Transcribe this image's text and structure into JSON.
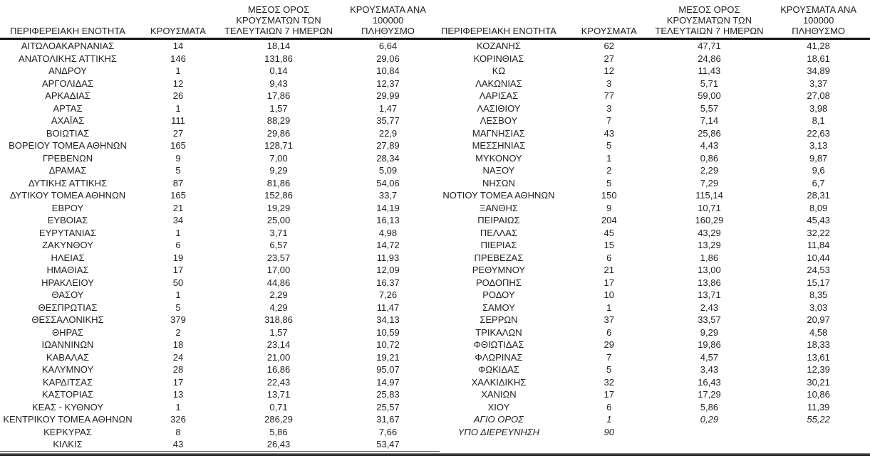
{
  "colors": {
    "background": "#ffffff",
    "text": "#1f1f1f",
    "rule": "#111111"
  },
  "header": {
    "col_region": "ΠΕΡΙΦΕΡΕΙΑΚΗ ΕΝΟΤΗΤΑ",
    "col_cases": "ΚΡΟΥΣΜΑΤΑ",
    "col_avg7": "ΜΕΣΟΣ ΟΡΟΣ\nΚΡΟΥΣΜΑΤΩΝ ΤΩΝ\nΤΕΛΕΥΤΑΙΩΝ 7 ΗΜΕΡΩΝ",
    "col_per100k": "ΚΡΟΥΣΜΑΤΑ ΑΝΑ 100000\nΠΛΗΘΥΣΜΟ"
  },
  "tables": {
    "left": {
      "rows": [
        {
          "region": "ΑΙΤΩΛΟΑΚΑΡΝΑΝΙΑΣ",
          "cases": "14",
          "avg7": "18,14",
          "per100k": "6,64",
          "italic": false
        },
        {
          "region": "ΑΝΑΤΟΛΙΚΗΣ ΑΤΤΙΚΗΣ",
          "cases": "146",
          "avg7": "131,86",
          "per100k": "29,06",
          "italic": false
        },
        {
          "region": "ΑΝΔΡΟΥ",
          "cases": "1",
          "avg7": "0,14",
          "per100k": "10,84",
          "italic": false
        },
        {
          "region": "ΑΡΓΟΛΙΔΑΣ",
          "cases": "12",
          "avg7": "9,43",
          "per100k": "12,37",
          "italic": false
        },
        {
          "region": "ΑΡΚΑΔΙΑΣ",
          "cases": "26",
          "avg7": "17,86",
          "per100k": "29,99",
          "italic": false
        },
        {
          "region": "ΑΡΤΑΣ",
          "cases": "1",
          "avg7": "1,57",
          "per100k": "1,47",
          "italic": false
        },
        {
          "region": "ΑΧΑΪΑΣ",
          "cases": "111",
          "avg7": "88,29",
          "per100k": "35,77",
          "italic": false
        },
        {
          "region": "ΒΟΙΩΤΙΑΣ",
          "cases": "27",
          "avg7": "29,86",
          "per100k": "22,9",
          "italic": false
        },
        {
          "region": "ΒΟΡΕΙΟΥ ΤΟΜΕΑ ΑΘΗΝΩΝ",
          "cases": "165",
          "avg7": "128,71",
          "per100k": "27,89",
          "italic": false
        },
        {
          "region": "ΓΡΕΒΕΝΩΝ",
          "cases": "9",
          "avg7": "7,00",
          "per100k": "28,34",
          "italic": false
        },
        {
          "region": "ΔΡΑΜΑΣ",
          "cases": "5",
          "avg7": "9,29",
          "per100k": "5,09",
          "italic": false
        },
        {
          "region": "ΔΥΤΙΚΗΣ ΑΤΤΙΚΗΣ",
          "cases": "87",
          "avg7": "81,86",
          "per100k": "54,06",
          "italic": false
        },
        {
          "region": "ΔΥΤΙΚΟΥ ΤΟΜΕΑ ΑΘΗΝΩΝ",
          "cases": "165",
          "avg7": "152,86",
          "per100k": "33,7",
          "italic": false
        },
        {
          "region": "ΕΒΡΟΥ",
          "cases": "21",
          "avg7": "19,29",
          "per100k": "14,19",
          "italic": false
        },
        {
          "region": "ΕΥΒΟΙΑΣ",
          "cases": "34",
          "avg7": "25,00",
          "per100k": "16,13",
          "italic": false
        },
        {
          "region": "ΕΥΡΥΤΑΝΙΑΣ",
          "cases": "1",
          "avg7": "3,71",
          "per100k": "4,98",
          "italic": false
        },
        {
          "region": "ΖΑΚΥΝΘΟΥ",
          "cases": "6",
          "avg7": "6,57",
          "per100k": "14,72",
          "italic": false
        },
        {
          "region": "ΗΛΕΙΑΣ",
          "cases": "19",
          "avg7": "23,57",
          "per100k": "11,93",
          "italic": false
        },
        {
          "region": "ΗΜΑΘΙΑΣ",
          "cases": "17",
          "avg7": "17,00",
          "per100k": "12,09",
          "italic": false
        },
        {
          "region": "ΗΡΑΚΛΕΙΟΥ",
          "cases": "50",
          "avg7": "44,86",
          "per100k": "16,37",
          "italic": false
        },
        {
          "region": "ΘΑΣΟΥ",
          "cases": "1",
          "avg7": "2,29",
          "per100k": "7,26",
          "italic": false
        },
        {
          "region": "ΘΕΣΠΡΩΤΙΑΣ",
          "cases": "5",
          "avg7": "4,29",
          "per100k": "11,47",
          "italic": false
        },
        {
          "region": "ΘΕΣΣΑΛΟΝΙΚΗΣ",
          "cases": "379",
          "avg7": "318,86",
          "per100k": "34,13",
          "italic": false
        },
        {
          "region": "ΘΗΡΑΣ",
          "cases": "2",
          "avg7": "1,57",
          "per100k": "10,59",
          "italic": false
        },
        {
          "region": "ΙΩΑΝΝΙΝΩΝ",
          "cases": "18",
          "avg7": "23,14",
          "per100k": "10,72",
          "italic": false
        },
        {
          "region": "ΚΑΒΑΛΑΣ",
          "cases": "24",
          "avg7": "21,00",
          "per100k": "19,21",
          "italic": false
        },
        {
          "region": "ΚΑΛΥΜΝΟΥ",
          "cases": "28",
          "avg7": "16,86",
          "per100k": "95,07",
          "italic": false
        },
        {
          "region": "ΚΑΡΔΙΤΣΑΣ",
          "cases": "17",
          "avg7": "22,43",
          "per100k": "14,97",
          "italic": false
        },
        {
          "region": "ΚΑΣΤΟΡΙΑΣ",
          "cases": "13",
          "avg7": "13,71",
          "per100k": "25,83",
          "italic": false
        },
        {
          "region": "ΚΕΑΣ - ΚΥΘΝΟΥ",
          "cases": "1",
          "avg7": "0,71",
          "per100k": "25,57",
          "italic": false
        },
        {
          "region": "ΚΕΝΤΡΙΚΟΥ ΤΟΜΕΑ ΑΘΗΝΩΝ",
          "cases": "326",
          "avg7": "286,29",
          "per100k": "31,67",
          "italic": false
        },
        {
          "region": "ΚΕΡΚΥΡΑΣ",
          "cases": "8",
          "avg7": "5,86",
          "per100k": "7,66",
          "italic": false
        },
        {
          "region": "ΚΙΛΚΙΣ",
          "cases": "43",
          "avg7": "26,43",
          "per100k": "53,47",
          "italic": false
        }
      ]
    },
    "right": {
      "rows": [
        {
          "region": "ΚΟΖΑΝΗΣ",
          "cases": "62",
          "avg7": "47,71",
          "per100k": "41,28",
          "italic": false
        },
        {
          "region": "ΚΟΡΙΝΘΙΑΣ",
          "cases": "27",
          "avg7": "24,86",
          "per100k": "18,61",
          "italic": false
        },
        {
          "region": "ΚΩ",
          "cases": "12",
          "avg7": "11,43",
          "per100k": "34,89",
          "italic": false
        },
        {
          "region": "ΛΑΚΩΝΙΑΣ",
          "cases": "3",
          "avg7": "5,71",
          "per100k": "3,37",
          "italic": false
        },
        {
          "region": "ΛΑΡΙΣΑΣ",
          "cases": "77",
          "avg7": "59,00",
          "per100k": "27,08",
          "italic": false
        },
        {
          "region": "ΛΑΣΙΘΙΟΥ",
          "cases": "3",
          "avg7": "5,57",
          "per100k": "3,98",
          "italic": false
        },
        {
          "region": "ΛΕΣΒΟΥ",
          "cases": "7",
          "avg7": "7,14",
          "per100k": "8,1",
          "italic": false
        },
        {
          "region": "ΜΑΓΝΗΣΙΑΣ",
          "cases": "43",
          "avg7": "25,86",
          "per100k": "22,63",
          "italic": false
        },
        {
          "region": "ΜΕΣΣΗΝΙΑΣ",
          "cases": "5",
          "avg7": "4,43",
          "per100k": "3,13",
          "italic": false
        },
        {
          "region": "ΜΥΚΟΝΟΥ",
          "cases": "1",
          "avg7": "0,86",
          "per100k": "9,87",
          "italic": false
        },
        {
          "region": "ΝΑΞΟΥ",
          "cases": "2",
          "avg7": "2,29",
          "per100k": "9,6",
          "italic": false
        },
        {
          "region": "ΝΗΣΩΝ",
          "cases": "5",
          "avg7": "7,29",
          "per100k": "6,7",
          "italic": false
        },
        {
          "region": "ΝΟΤΙΟΥ ΤΟΜΕΑ ΑΘΗΝΩΝ",
          "cases": "150",
          "avg7": "115,14",
          "per100k": "28,31",
          "italic": false
        },
        {
          "region": "ΞΑΝΘΗΣ",
          "cases": "9",
          "avg7": "10,71",
          "per100k": "8,09",
          "italic": false
        },
        {
          "region": "ΠΕΙΡΑΙΩΣ",
          "cases": "204",
          "avg7": "160,29",
          "per100k": "45,43",
          "italic": false
        },
        {
          "region": "ΠΕΛΛΑΣ",
          "cases": "45",
          "avg7": "43,29",
          "per100k": "32,22",
          "italic": false
        },
        {
          "region": "ΠΙΕΡΙΑΣ",
          "cases": "15",
          "avg7": "13,29",
          "per100k": "11,84",
          "italic": false
        },
        {
          "region": "ΠΡΕΒΕΖΑΣ",
          "cases": "6",
          "avg7": "1,86",
          "per100k": "10,44",
          "italic": false
        },
        {
          "region": "ΡΕΘΥΜΝΟΥ",
          "cases": "21",
          "avg7": "13,00",
          "per100k": "24,53",
          "italic": false
        },
        {
          "region": "ΡΟΔΟΠΗΣ",
          "cases": "17",
          "avg7": "13,86",
          "per100k": "15,17",
          "italic": false
        },
        {
          "region": "ΡΟΔΟΥ",
          "cases": "10",
          "avg7": "13,71",
          "per100k": "8,35",
          "italic": false
        },
        {
          "region": "ΣΑΜΟΥ",
          "cases": "1",
          "avg7": "2,43",
          "per100k": "3,03",
          "italic": false
        },
        {
          "region": "ΣΕΡΡΩΝ",
          "cases": "37",
          "avg7": "33,57",
          "per100k": "20,97",
          "italic": false
        },
        {
          "region": "ΤΡΙΚΑΛΩΝ",
          "cases": "6",
          "avg7": "9,29",
          "per100k": "4,58",
          "italic": false
        },
        {
          "region": "ΦΘΙΩΤΙΔΑΣ",
          "cases": "29",
          "avg7": "19,86",
          "per100k": "18,33",
          "italic": false
        },
        {
          "region": "ΦΛΩΡΙΝΑΣ",
          "cases": "7",
          "avg7": "4,57",
          "per100k": "13,61",
          "italic": false
        },
        {
          "region": "ΦΩΚΙΔΑΣ",
          "cases": "5",
          "avg7": "3,43",
          "per100k": "12,39",
          "italic": false
        },
        {
          "region": "ΧΑΛΚΙΔΙΚΗΣ",
          "cases": "32",
          "avg7": "16,43",
          "per100k": "30,21",
          "italic": false
        },
        {
          "region": "ΧΑΝΙΩΝ",
          "cases": "17",
          "avg7": "17,29",
          "per100k": "10,86",
          "italic": false
        },
        {
          "region": "ΧΙΟΥ",
          "cases": "6",
          "avg7": "5,86",
          "per100k": "11,39",
          "italic": false
        },
        {
          "region": "ΑΓΙΟ ΟΡΟΣ",
          "cases": "1",
          "avg7": "0,29",
          "per100k": "55,22",
          "italic": true
        },
        {
          "region": "ΥΠΟ ΔΙΕΡΕΥΝΗΣΗ",
          "cases": "90",
          "avg7": "",
          "per100k": "",
          "italic": true
        }
      ]
    }
  }
}
